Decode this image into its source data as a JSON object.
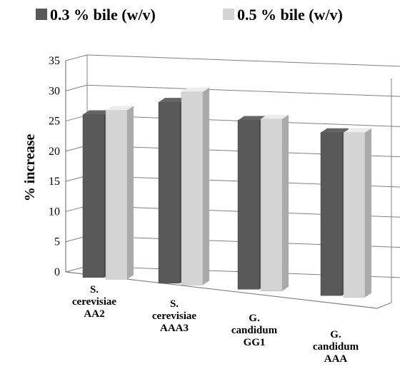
{
  "chart_data": {
    "type": "bar",
    "style": "3d-clustered-column",
    "title": "",
    "xlabel": "",
    "ylabel": "% increase",
    "ylim": [
      0,
      35
    ],
    "yticks": [
      "0",
      "5",
      "10",
      "15",
      "20",
      "25",
      "30",
      "35"
    ],
    "grid": true,
    "legend_position": "top",
    "categories": [
      [
        "S.",
        "cerevisiae",
        "AA2"
      ],
      [
        "S.",
        "cerevisiae",
        "AAA3"
      ],
      [
        "G.",
        "candidum",
        "GG1"
      ],
      [
        "G.",
        "candidum",
        "AAA"
      ]
    ],
    "series": [
      {
        "name": "0.3 % bile (w/v)",
        "color": "#595959",
        "values": [
          27,
          30,
          28,
          27
        ]
      },
      {
        "name": "0.5 % bile (w/v)",
        "color": "#d4d4d4",
        "values": [
          28,
          32,
          28.5,
          27.3
        ]
      }
    ]
  }
}
